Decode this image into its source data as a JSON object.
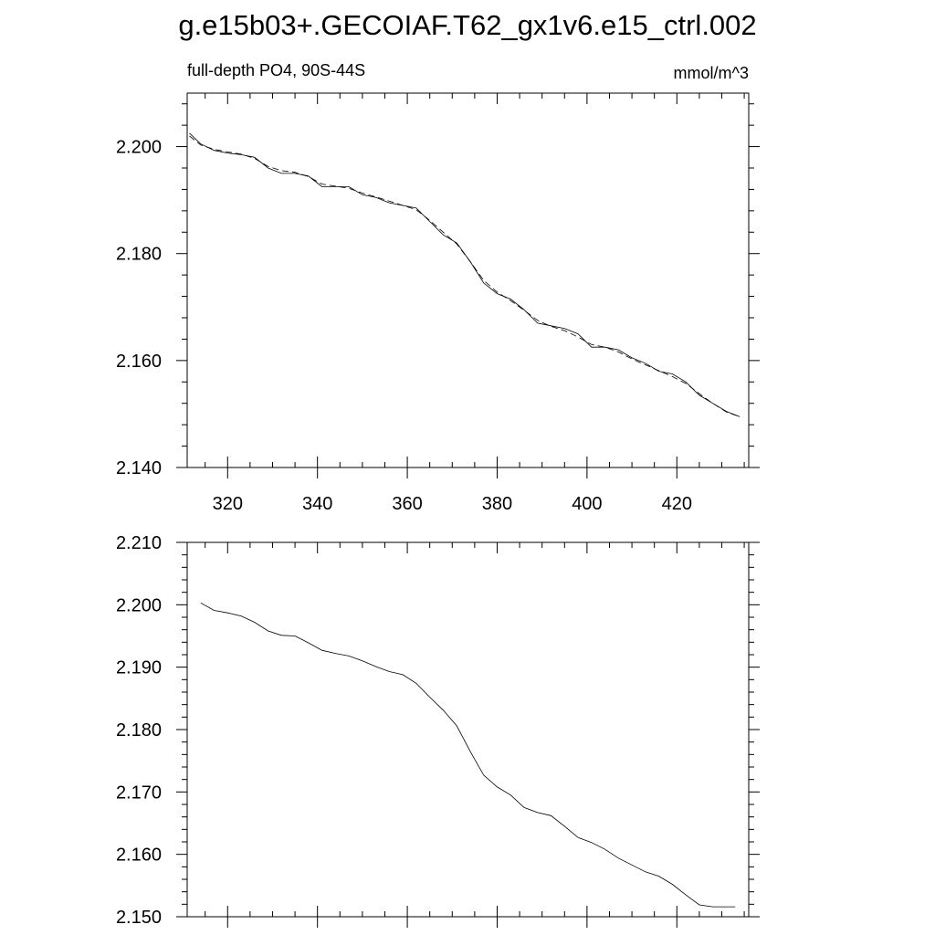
{
  "figure": {
    "title": "g.e15b03+.GECOIAF.T62_gx1v6.e15_ctrl.002"
  },
  "chart_data": [
    {
      "type": "line",
      "title": "",
      "left_string": "full-depth PO4, 90S-44S",
      "right_string": "mmol/m^3",
      "xlabel": "",
      "ylabel": "",
      "xlim": [
        311,
        436
      ],
      "ylim": [
        2.14,
        2.21
      ],
      "x_ticks": [
        320,
        340,
        360,
        380,
        400,
        420
      ],
      "x_tick_labels": [
        "320",
        "340",
        "360",
        "380",
        "400",
        "420"
      ],
      "y_ticks": [
        2.14,
        2.16,
        2.18,
        2.2
      ],
      "y_tick_labels": [
        "2.140",
        "2.160",
        "2.180",
        "2.200"
      ],
      "grid": false,
      "series": [
        {
          "style": "solid",
          "x": [
            311.5,
            314,
            317,
            320,
            323,
            326,
            329,
            332,
            335,
            338,
            341,
            344,
            347,
            350,
            353,
            356,
            359,
            362,
            365,
            368,
            371,
            374,
            377,
            380,
            383,
            386,
            389,
            392,
            395,
            398,
            401,
            404,
            407,
            410,
            413,
            416,
            419,
            422,
            425,
            428,
            431,
            434
          ],
          "y": [
            2.2025,
            2.2005,
            2.1993,
            2.1988,
            2.1985,
            2.198,
            2.196,
            2.195,
            2.195,
            2.1945,
            2.1925,
            2.1925,
            2.1925,
            2.191,
            2.1905,
            2.1895,
            2.189,
            2.1885,
            2.186,
            2.1835,
            2.182,
            2.1785,
            2.1745,
            2.1725,
            2.1715,
            2.1695,
            2.167,
            2.1665,
            2.166,
            2.165,
            2.1625,
            2.1625,
            2.162,
            2.1605,
            2.1595,
            2.158,
            2.1575,
            2.156,
            2.1535,
            2.152,
            2.1505,
            2.1495
          ]
        },
        {
          "style": "dashed",
          "x": [
            311.5,
            314,
            317,
            320,
            323,
            326,
            329,
            332,
            335,
            338,
            341,
            344,
            347,
            350,
            353,
            356,
            359,
            362,
            365,
            368,
            371,
            374,
            377,
            380,
            383,
            386,
            389,
            392,
            395,
            398,
            401,
            404,
            407,
            410,
            413,
            416,
            419,
            422,
            425,
            428,
            431,
            434
          ],
          "y": [
            2.202,
            2.2003,
            2.1995,
            2.199,
            2.1986,
            2.1978,
            2.1963,
            2.1955,
            2.1952,
            2.1944,
            2.193,
            2.1926,
            2.1922,
            2.1913,
            2.1906,
            2.1898,
            2.189,
            2.1882,
            2.1862,
            2.184,
            2.1818,
            2.1785,
            2.175,
            2.1728,
            2.1712,
            2.1694,
            2.1675,
            2.1664,
            2.1656,
            2.1644,
            2.163,
            2.1625,
            2.1616,
            2.1603,
            2.1592,
            2.1581,
            2.157,
            2.1557,
            2.1538,
            2.152,
            2.1504,
            2.1495
          ]
        }
      ]
    },
    {
      "type": "line",
      "title": "",
      "xlabel": "",
      "ylabel": "",
      "xlim": [
        311,
        436
      ],
      "ylim": [
        2.15,
        2.21
      ],
      "x_ticks": [
        320,
        340,
        360,
        380,
        400,
        420
      ],
      "y_ticks": [
        2.15,
        2.16,
        2.17,
        2.18,
        2.19,
        2.2,
        2.21
      ],
      "y_tick_labels": [
        "2.150",
        "2.160",
        "2.170",
        "2.180",
        "2.190",
        "2.200",
        "2.210"
      ],
      "grid": false,
      "series": [
        {
          "style": "solid",
          "x": [
            314,
            317,
            320,
            323,
            326,
            329,
            332,
            335,
            338,
            341,
            344,
            347,
            350,
            353,
            356,
            359,
            362,
            365,
            368,
            371,
            374,
            377,
            380,
            383,
            386,
            389,
            392,
            395,
            398,
            401,
            404,
            407,
            410,
            413,
            416,
            419,
            422,
            425,
            428,
            431,
            433
          ],
          "y": [
            2.2003,
            2.1991,
            2.1987,
            2.1982,
            2.1972,
            2.1958,
            2.1951,
            2.195,
            2.1939,
            2.1927,
            2.1922,
            2.1918,
            2.191,
            2.1901,
            2.1893,
            2.1888,
            2.1874,
            2.1852,
            2.1831,
            2.1806,
            2.1765,
            2.1727,
            2.1708,
            2.1695,
            2.1675,
            2.1667,
            2.1662,
            2.1645,
            2.1627,
            2.1619,
            2.1608,
            2.1594,
            2.1583,
            2.1572,
            2.1565,
            2.1552,
            2.1535,
            2.1519,
            2.1516,
            2.1516,
            2.1516
          ]
        }
      ]
    }
  ]
}
